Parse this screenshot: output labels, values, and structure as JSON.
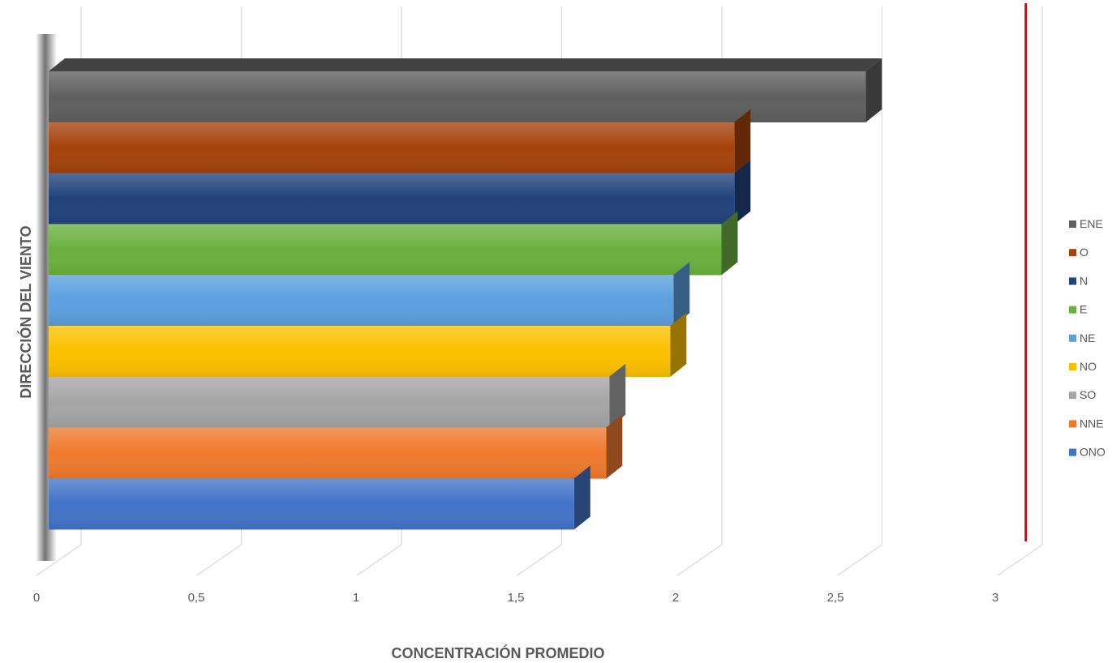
{
  "chart_data": {
    "type": "bar",
    "orientation": "horizontal",
    "style": "3d",
    "xlabel": "CONCENTRACIÓN PROMEDIO",
    "ylabel": "DIRECCIÓN DEL VIENTO",
    "xlim": [
      0,
      3
    ],
    "xticks": [
      "0",
      "0,5",
      "1",
      "1,5",
      "2",
      "2,5",
      "3"
    ],
    "grid": true,
    "legend_position": "right",
    "reference_line": {
      "x": 3.05,
      "color": "#e00000"
    },
    "series": [
      {
        "name": "ENE",
        "value": 2.55,
        "color": "#5f5f5f"
      },
      {
        "name": "O",
        "value": 2.14,
        "color": "#a5430c"
      },
      {
        "name": "N",
        "value": 2.14,
        "color": "#22427d"
      },
      {
        "name": "E",
        "value": 2.1,
        "color": "#6bb03f"
      },
      {
        "name": "NE",
        "value": 1.95,
        "color": "#5b9fde"
      },
      {
        "name": "NO",
        "value": 1.94,
        "color": "#fbc000"
      },
      {
        "name": "SO",
        "value": 1.75,
        "color": "#a5a5a5"
      },
      {
        "name": "NNE",
        "value": 1.74,
        "color": "#ef7a2e"
      },
      {
        "name": "ONO",
        "value": 1.64,
        "color": "#4273c8"
      }
    ]
  }
}
